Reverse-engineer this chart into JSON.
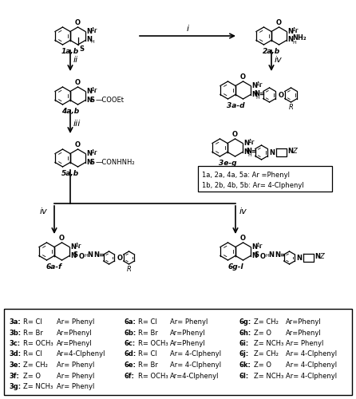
{
  "bg_color": "#ffffff",
  "fig_w": 4.46,
  "fig_h": 5.0,
  "dpi": 100,
  "table_col1": [
    [
      "3a",
      "R= Cl",
      "Ar= Phenyl"
    ],
    [
      "3b",
      "R= Br",
      "Ar=Phenyl"
    ],
    [
      "3c",
      "R= OCH₃",
      "Ar=Phenyl"
    ],
    [
      "3d",
      "R= Cl",
      "Ar=4-Clphenyl"
    ],
    [
      "3e",
      "Z= CH₂",
      "Ar= Phenyl"
    ],
    [
      "3f",
      "Z= O",
      "Ar= Phenyl"
    ],
    [
      "3g",
      "Z= NCH₃",
      "Ar= Phenyl"
    ]
  ],
  "table_col2": [
    [
      "6a",
      "R= Cl",
      "Ar= Phenyl"
    ],
    [
      "6b",
      "R= Br",
      "Ar=Phenyl"
    ],
    [
      "6c",
      "R= OCH₃",
      "Ar=Phenyl"
    ],
    [
      "6d",
      "R= Cl",
      "Ar= 4-Clphenyl"
    ],
    [
      "6e",
      "R= Br",
      "Ar= 4-Clphenyl"
    ],
    [
      "6f",
      "R= OCH₃",
      "Ar=4-Clphenyl"
    ],
    [
      "",
      "",
      ""
    ]
  ],
  "table_col3": [
    [
      "6g",
      "Z= CH₂",
      "Ar=Phenyl"
    ],
    [
      "6h",
      "Z= O",
      "Ar=Phenyl"
    ],
    [
      "6i",
      "Z= NCH₃",
      "Ar= Phenyl"
    ],
    [
      "6j",
      "Z= CH₂",
      "Ar= 4-Clphenyl"
    ],
    [
      "6k",
      "Z= O",
      "Ar= 4-Clphenyl"
    ],
    [
      "6l",
      "Z= NCH₃",
      "Ar= 4-Clphenyl"
    ],
    [
      "",
      "",
      ""
    ]
  ],
  "note_lines": [
    "1a, 2a, 4a, 5a: Ar =Phenyl",
    "1b, 2b, 4b, 5b: Ar= 4-Clphenyl"
  ]
}
